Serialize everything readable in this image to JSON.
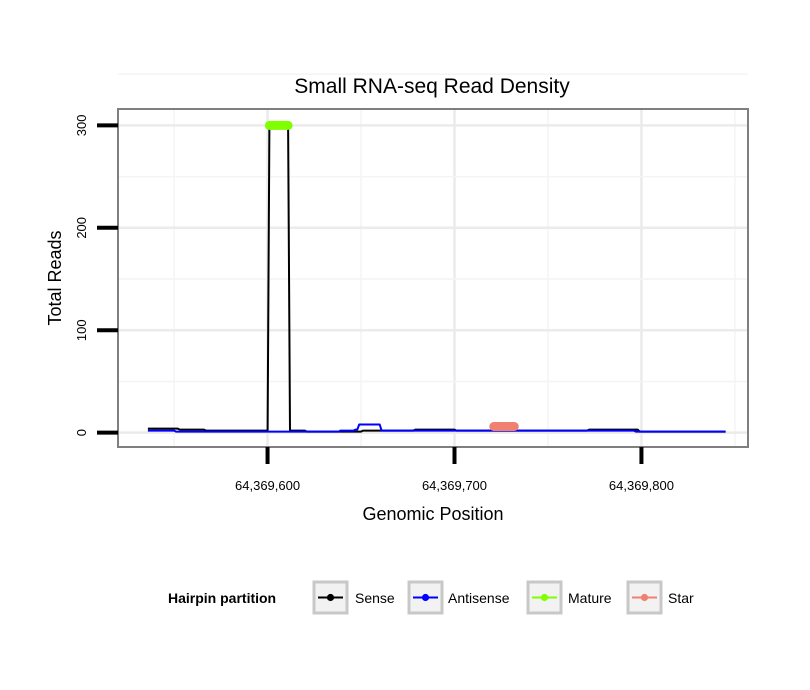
{
  "chart_data": {
    "type": "line",
    "title": "Small RNA-seq Read Density",
    "xlabel": "Genomic Position",
    "ylabel": "Total Reads",
    "xlim": [
      64369520,
      64369857
    ],
    "ylim": [
      -14,
      316
    ],
    "x_ticks": [
      64369600,
      64369700,
      64369800
    ],
    "x_tick_labels": [
      "64,369,600",
      "64,369,700",
      "64,369,800"
    ],
    "y_ticks": [
      0,
      100,
      200,
      300
    ],
    "y_tick_labels": [
      "0",
      "100",
      "200",
      "300"
    ],
    "grid": true,
    "legend": {
      "title": "Hairpin partition",
      "position": "bottom",
      "entries": [
        {
          "label": "Sense",
          "color": "#000000"
        },
        {
          "label": "Antisense",
          "color": "#0000ff"
        },
        {
          "label": "Mature",
          "color": "#7fff00"
        },
        {
          "label": "Star",
          "color": "#f08070"
        }
      ]
    },
    "series": [
      {
        "name": "Sense",
        "color": "#000000",
        "x": [
          64369536,
          64369552,
          64369553,
          64369566,
          64369567,
          64369600,
          64369601,
          64369611,
          64369612,
          64369620,
          64369621,
          64369650,
          64369651,
          64369678,
          64369679,
          64369700,
          64369701,
          64369771,
          64369772,
          64369798,
          64369799,
          64369845
        ],
        "y": [
          4,
          4,
          3,
          3,
          2,
          2,
          300,
          300,
          2,
          2,
          1,
          1,
          2,
          2,
          3,
          3,
          2,
          2,
          3,
          3,
          1,
          1
        ]
      },
      {
        "name": "Antisense",
        "color": "#0000ff",
        "x": [
          64369536,
          64369550,
          64369551,
          64369638,
          64369639,
          64369646,
          64369647,
          64369648,
          64369649,
          64369660,
          64369661,
          64369796,
          64369797,
          64369845
        ],
        "y": [
          2,
          2,
          1,
          1,
          2,
          2,
          3,
          3,
          8,
          8,
          2,
          2,
          1,
          1
        ]
      },
      {
        "name": "Mature",
        "color": "#7fff00",
        "x": [
          64369601,
          64369611
        ],
        "y": [
          300,
          300
        ]
      },
      {
        "name": "Star",
        "color": "#f08070",
        "x": [
          64369721,
          64369732
        ],
        "y": [
          6,
          6
        ]
      }
    ]
  }
}
